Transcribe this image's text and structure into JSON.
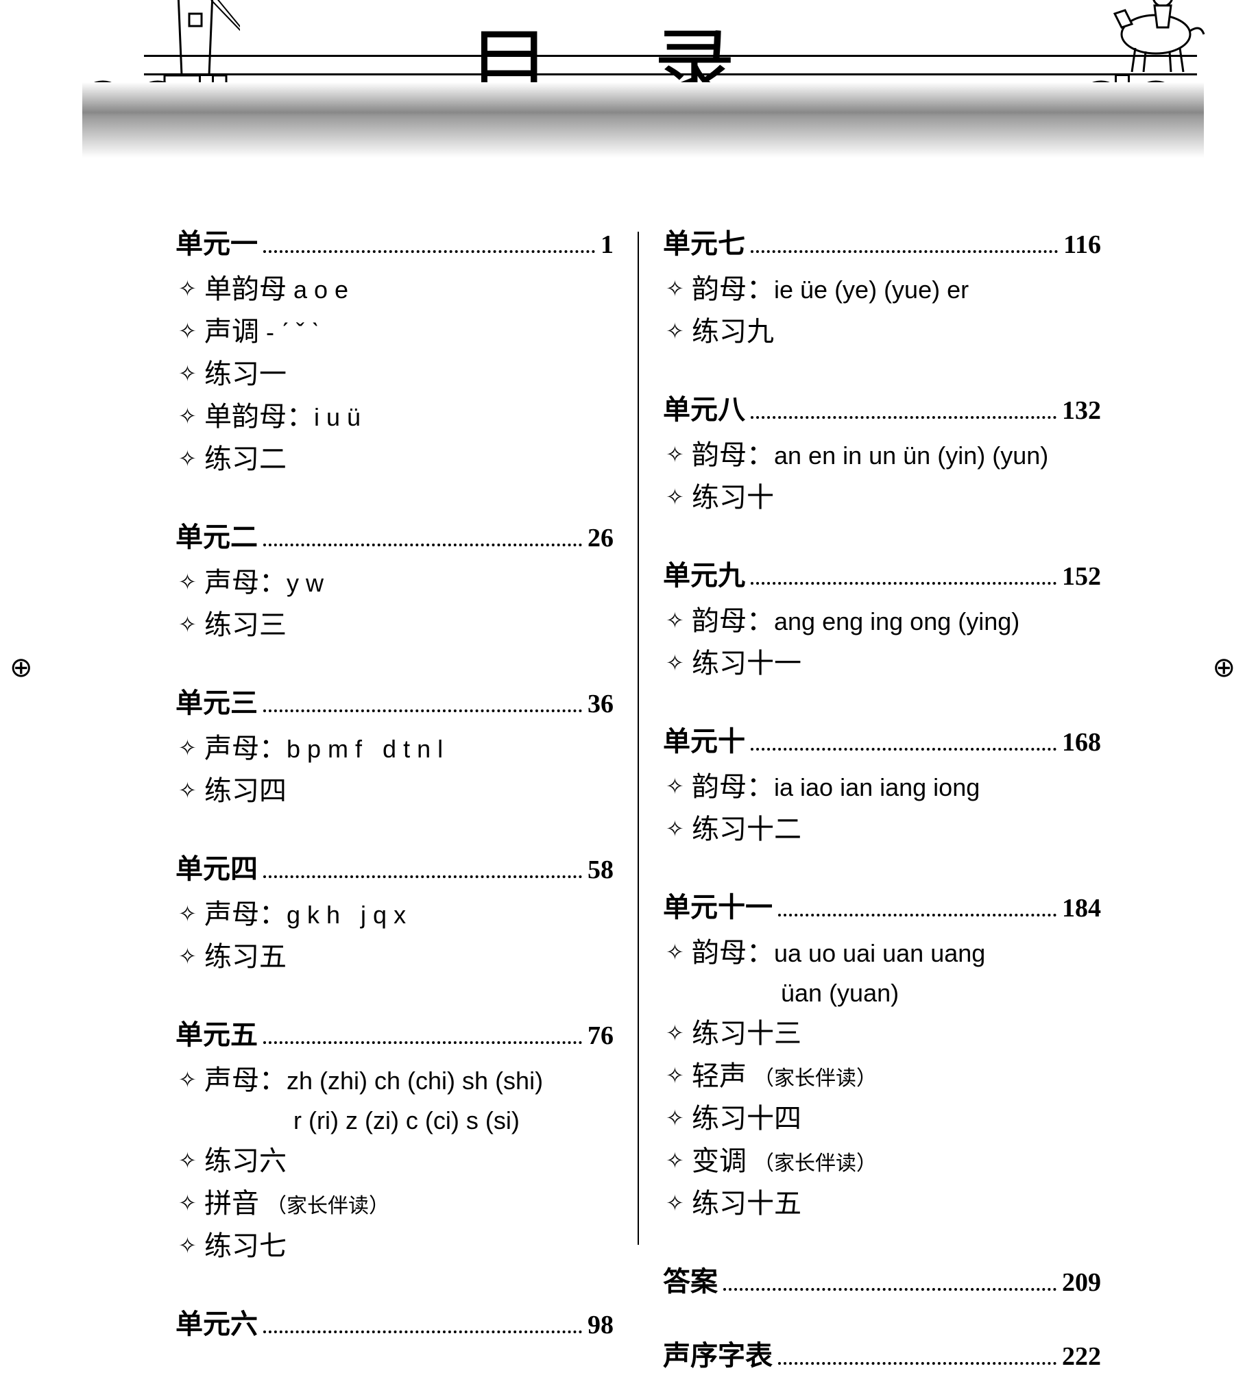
{
  "title": "目 录",
  "colors": {
    "text": "#000",
    "bg": "#fff",
    "grad_mid": "#888"
  },
  "registration_mark": "⊕",
  "left_column": [
    {
      "title": "单元一",
      "page": "1",
      "items": [
        {
          "t": "单韵母 <span class='latin'>a o e</span>"
        },
        {
          "t": "声调 <span class='latin'>- ˊ ˇ ˋ</span>"
        },
        {
          "t": "练习一"
        },
        {
          "t": "单韵母：<span class='latin'>i u ü</span>"
        },
        {
          "t": "练习二"
        }
      ]
    },
    {
      "title": "单元二",
      "page": "26",
      "items": [
        {
          "t": "声母：<span class='latin'>y w</span>"
        },
        {
          "t": "练习三"
        }
      ]
    },
    {
      "title": "单元三",
      "page": "36",
      "items": [
        {
          "t": "声母：<span class='latin'>b p m f &nbsp; d t n l</span>"
        },
        {
          "t": "练习四"
        }
      ]
    },
    {
      "title": "单元四",
      "page": "58",
      "items": [
        {
          "t": "声母：<span class='latin'>g k h &nbsp; j q x</span>"
        },
        {
          "t": "练习五"
        }
      ]
    },
    {
      "title": "单元五",
      "page": "76",
      "items": [
        {
          "t": "声母：<span class='latin'>zh (zhi) ch (chi) sh (shi)</span><span class='cont latin'>r (ri) z (zi) c (ci) s (si)</span>"
        },
        {
          "t": "练习六"
        },
        {
          "t": "拼音 <span class='small'>（家长伴读）</span>"
        },
        {
          "t": "练习七"
        }
      ]
    },
    {
      "title": "单元六",
      "page": "98",
      "items": []
    }
  ],
  "right_column": [
    {
      "title": "单元七",
      "page": "116",
      "items": [
        {
          "t": "韵母：<span class='latin'>ie üe (ye) (yue) er</span>"
        },
        {
          "t": "练习九"
        }
      ]
    },
    {
      "title": "单元八",
      "page": "132",
      "items": [
        {
          "t": "韵母：<span class='latin'>an en in un ün (yin) (yun)</span>"
        },
        {
          "t": "练习十"
        }
      ]
    },
    {
      "title": "单元九",
      "page": "152",
      "items": [
        {
          "t": "韵母：<span class='latin'>ang eng ing ong (ying)</span>"
        },
        {
          "t": "练习十一"
        }
      ]
    },
    {
      "title": "单元十",
      "page": "168",
      "items": [
        {
          "t": "韵母：<span class='latin'>ia iao ian iang iong</span>"
        },
        {
          "t": "练习十二"
        }
      ]
    },
    {
      "title": "单元十一",
      "page": "184",
      "items": [
        {
          "t": "韵母：<span class='latin'>ua uo uai uan uang</span><span class='cont latin'>üan (yuan)</span>"
        },
        {
          "t": "练习十三"
        },
        {
          "t": "轻声 <span class='small'>（家长伴读）</span>"
        },
        {
          "t": "练习十四"
        },
        {
          "t": "变调 <span class='small'>（家长伴读）</span>"
        },
        {
          "t": "练习十五"
        }
      ]
    },
    {
      "title": "答案",
      "page": "209",
      "items": []
    },
    {
      "title": "声序字表",
      "page": "222",
      "items": []
    }
  ]
}
